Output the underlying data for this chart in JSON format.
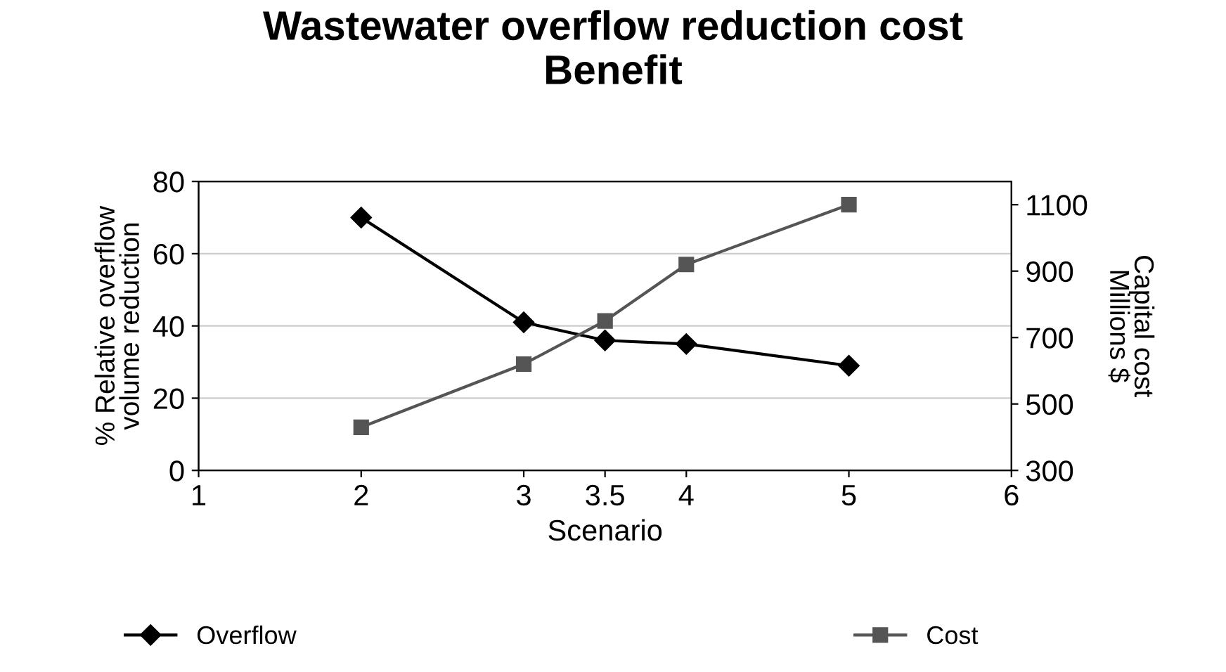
{
  "chart_data": {
    "type": "line",
    "title": "Wastewater overflow reduction cost\nBenefit",
    "xlabel": "Scenario",
    "ylabel": "% Relative overflow\nvolume reduction",
    "y2label": "Capital cost\nMillions $",
    "x": [
      2,
      3,
      3.5,
      4,
      5
    ],
    "series": [
      {
        "name": "Overflow",
        "color": "#000000",
        "marker": "diamond",
        "values": [
          70,
          41,
          36,
          35,
          29
        ]
      },
      {
        "name": "Cost",
        "color": "#555555",
        "marker": "square",
        "axis": "y2",
        "values": [
          430,
          620,
          750,
          920,
          1100
        ]
      }
    ],
    "xlim": [
      1,
      6
    ],
    "xticks": [
      1,
      2,
      3,
      3.5,
      4,
      5,
      6
    ],
    "ylim": [
      0,
      80
    ],
    "yticks": [
      0,
      20,
      40,
      60,
      80
    ],
    "y2lim": [
      300,
      1170
    ],
    "y2ticks": [
      300,
      500,
      700,
      900,
      1100
    ],
    "grid": "y",
    "legend": "bottom",
    "line_style": "solid"
  }
}
